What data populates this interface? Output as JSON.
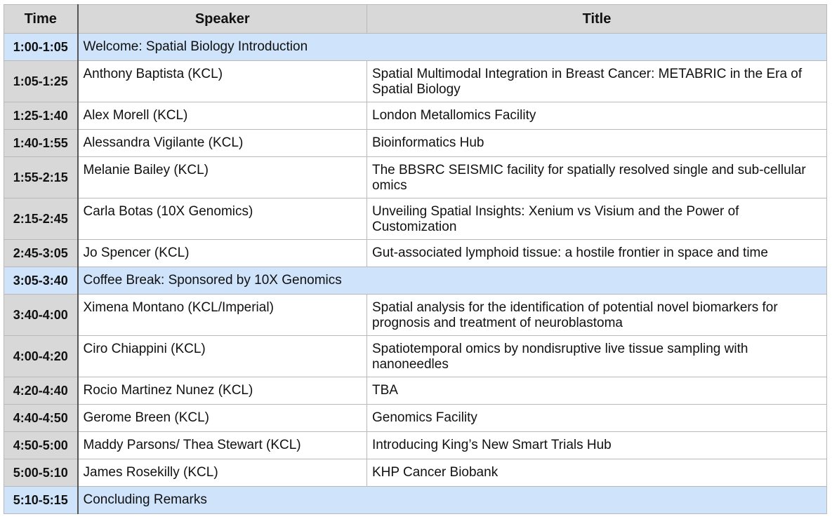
{
  "header": {
    "time": "Time",
    "speaker": "Speaker",
    "title": "Title"
  },
  "rows": [
    {
      "time": "1:00-1:05",
      "label": "Welcome: Spatial Biology Introduction"
    },
    {
      "time": "1:05-1:25",
      "speaker": "Anthony Baptista (KCL)",
      "title": "Spatial Multimodal Integration in Breast Cancer: METABRIC in the Era of Spatial Biology"
    },
    {
      "time": "1:25-1:40",
      "speaker": "Alex Morell (KCL)",
      "title": "London Metallomics Facility"
    },
    {
      "time": "1:40-1:55",
      "speaker": "Alessandra Vigilante (KCL)",
      "title": "Bioinformatics Hub"
    },
    {
      "time": "1:55-2:15",
      "speaker": "Melanie Bailey (KCL)",
      "title": "The BBSRC SEISMIC facility for spatially resolved single and sub-cellular omics"
    },
    {
      "time": "2:15-2:45",
      "speaker": "Carla Botas (10X Genomics)",
      "title": "Unveiling Spatial Insights: Xenium vs Visium and the Power of Customization"
    },
    {
      "time": "2:45-3:05",
      "speaker": "Jo Spencer (KCL)",
      "title": "Gut-associated lymphoid tissue: a hostile frontier in space and time"
    },
    {
      "time": "3:05-3:40",
      "label": "Coffee Break: Sponsored by 10X Genomics"
    },
    {
      "time": "3:40-4:00",
      "speaker": "Ximena Montano (KCL/Imperial)",
      "title": "Spatial analysis for the identification of potential novel biomarkers for prognosis and treatment of neuroblastoma"
    },
    {
      "time": "4:00-4:20",
      "speaker": "Ciro Chiappini (KCL)",
      "title": "Spatiotemporal omics by nondisruptive live tissue sampling with nanoneedles"
    },
    {
      "time": "4:20-4:40",
      "speaker": "Rocio Martinez Nunez (KCL)",
      "title": "TBA"
    },
    {
      "time": "4:40-4:50",
      "speaker": "Gerome Breen (KCL)",
      "title": "Genomics Facility"
    },
    {
      "time": "4:50-5:00",
      "speaker": "Maddy Parsons/ Thea Stewart (KCL)",
      "title": "Introducing King’s New Smart Trials Hub"
    },
    {
      "time": "5:00-5:10",
      "speaker": "James Rosekilly (KCL)",
      "title": "KHP Cancer Biobank"
    },
    {
      "time": "5:10-5:15",
      "label": "Concluding Remarks"
    }
  ],
  "colors": {
    "header_bg": "#d8d8d8",
    "highlight_bg": "#cfe3fa",
    "border": "#b9b9b9"
  }
}
